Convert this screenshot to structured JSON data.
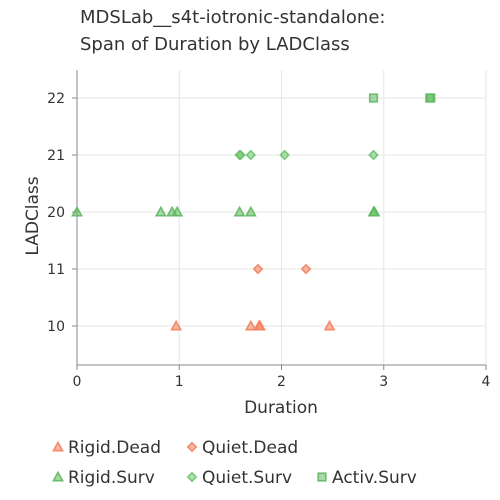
{
  "chart_data": {
    "type": "scatter",
    "title_lines": [
      "MDSLab__s4t-iotronic-standalone:",
      "Span of Duration by LADClass"
    ],
    "xlabel": "Duration",
    "ylabel": "LADClass",
    "xlim": [
      0,
      4
    ],
    "x_ticks": [
      "0",
      "1",
      "2",
      "3",
      "4"
    ],
    "y_categories": [
      "10",
      "11",
      "20",
      "21",
      "22"
    ],
    "grid": true,
    "legend_position": "bottom",
    "series": [
      {
        "name": "Rigid.Dead",
        "marker": "triangle",
        "color": "#f4825e",
        "points": [
          {
            "x": 0.97,
            "y": "10"
          },
          {
            "x": 1.7,
            "y": "10"
          },
          {
            "x": 1.78,
            "y": "10"
          },
          {
            "x": 1.79,
            "y": "10"
          },
          {
            "x": 2.47,
            "y": "10"
          }
        ]
      },
      {
        "name": "Quiet.Dead",
        "marker": "diamond",
        "color": "#f4825e",
        "points": [
          {
            "x": 1.77,
            "y": "11"
          },
          {
            "x": 2.24,
            "y": "11"
          }
        ]
      },
      {
        "name": "Rigid.Surv",
        "marker": "triangle",
        "color": "#5fb85f",
        "points": [
          {
            "x": 0.0,
            "y": "20"
          },
          {
            "x": 0.82,
            "y": "20"
          },
          {
            "x": 0.93,
            "y": "20"
          },
          {
            "x": 0.98,
            "y": "20"
          },
          {
            "x": 1.59,
            "y": "20"
          },
          {
            "x": 1.7,
            "y": "20"
          },
          {
            "x": 2.9,
            "y": "20"
          },
          {
            "x": 2.91,
            "y": "20"
          }
        ]
      },
      {
        "name": "Quiet.Surv",
        "marker": "diamond",
        "color": "#6fc46f",
        "points": [
          {
            "x": 1.59,
            "y": "21"
          },
          {
            "x": 1.6,
            "y": "21"
          },
          {
            "x": 1.7,
            "y": "21"
          },
          {
            "x": 2.03,
            "y": "21"
          },
          {
            "x": 2.9,
            "y": "21"
          }
        ]
      },
      {
        "name": "Activ.Surv",
        "marker": "square",
        "color": "#5fb85f",
        "points": [
          {
            "x": 2.9,
            "y": "22"
          },
          {
            "x": 3.45,
            "y": "22"
          },
          {
            "x": 3.46,
            "y": "22"
          }
        ]
      }
    ]
  }
}
